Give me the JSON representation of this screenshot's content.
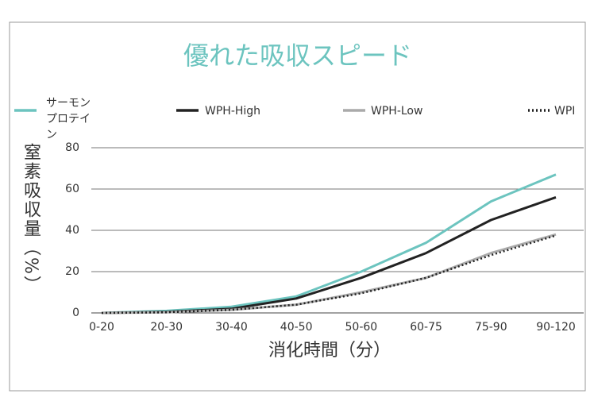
{
  "chart_data": {
    "type": "line",
    "title": "優れた吸収スピード",
    "x_label": "消化時間（分）",
    "y_label": "窒素吸収量（%）",
    "categories": [
      "0-20",
      "20-30",
      "30-40",
      "40-50",
      "50-60",
      "60-75",
      "75-90",
      "90-120"
    ],
    "series": [
      {
        "name": "サーモンプロテイン",
        "color": "#6cc4bf",
        "values": [
          0,
          1,
          3,
          8,
          20,
          34,
          54,
          67
        ]
      },
      {
        "name": "WPH-High",
        "color": "#222222",
        "values": [
          0,
          0.5,
          2,
          7,
          17,
          29,
          45,
          56
        ]
      },
      {
        "name": "WPH-Low",
        "color": "#aaaaaa",
        "values": [
          0,
          0.3,
          1.5,
          4,
          10,
          17,
          29,
          38
        ]
      },
      {
        "name": "WPI",
        "color": "#222222",
        "line_style": "dotted",
        "values": [
          0,
          0.3,
          1.5,
          4,
          9.5,
          17,
          28,
          37.5
        ]
      }
    ],
    "ylim": [
      0,
      80
    ],
    "yticks": [
      0,
      20,
      40,
      60,
      80
    ],
    "grid": true
  }
}
